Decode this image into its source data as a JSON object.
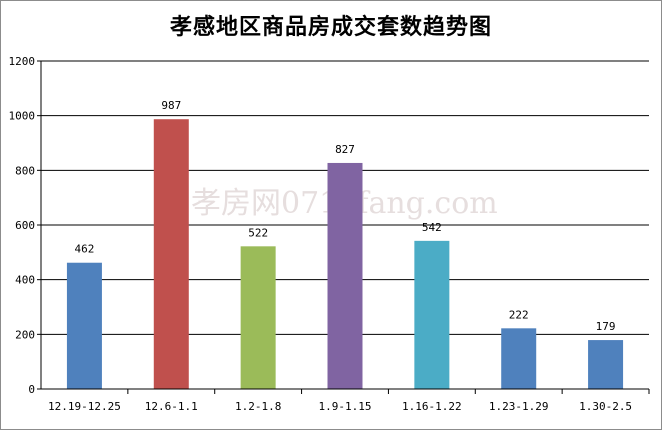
{
  "chart_data": {
    "type": "bar",
    "title": "孝感地区商品房成交套数趋势图",
    "categories": [
      "12.19-12.25",
      "12.6-1.1",
      "1.2-1.8",
      "1.9-1.15",
      "1.16-1.22",
      "1.23-1.29",
      "1.30-2.5"
    ],
    "values": [
      462,
      987,
      522,
      827,
      542,
      222,
      179
    ],
    "bar_colors": [
      "#4f81bd",
      "#c0504d",
      "#9bbb59",
      "#8064a2",
      "#4bacc6",
      "#4f81bd",
      "#4f81bd"
    ],
    "ylim": [
      0,
      1200
    ],
    "yticks": [
      0,
      200,
      400,
      600,
      800,
      1000,
      1200
    ],
    "grid": true,
    "legend": "none",
    "xlabel": "",
    "ylabel": ""
  },
  "watermark": {
    "text": "孝房网0712fang.com",
    "color": "#e6dede"
  }
}
